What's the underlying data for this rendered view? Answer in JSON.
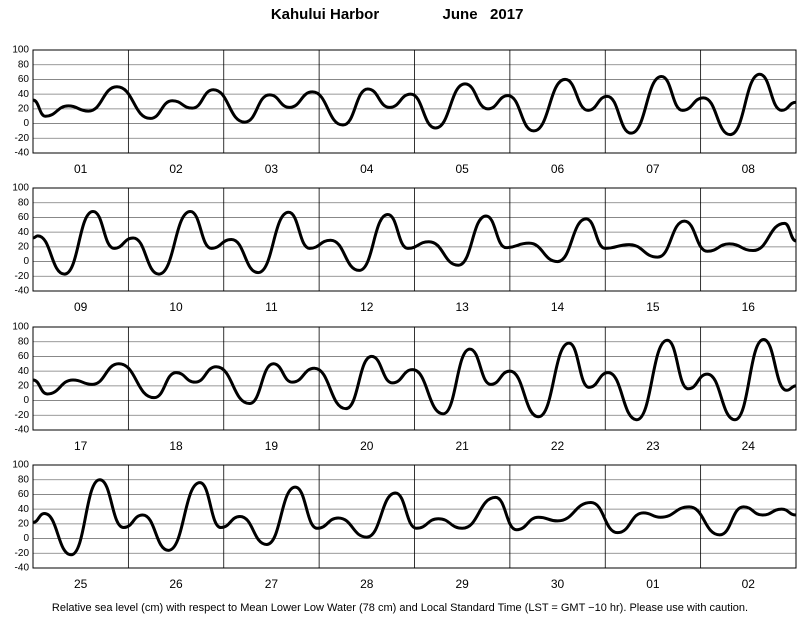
{
  "header": {
    "title": "Kahului Harbor",
    "date": "June   2017"
  },
  "footnote": "Relative sea level (cm) with respect to Mean Lower Low Water (78 cm) and Local Standard Time (LST = GMT −10 hr). Please use with caution.",
  "chart_data": [
    {
      "type": "line",
      "categories": [
        "01",
        "02",
        "03",
        "04",
        "05",
        "06",
        "07",
        "08"
      ],
      "xlim": [
        0,
        8
      ],
      "ylim": [
        -40,
        100
      ],
      "yticks": [
        -40,
        -20,
        0,
        20,
        40,
        60,
        80,
        100
      ],
      "grid": true,
      "color": "#000000",
      "x": [
        0,
        0.13,
        0.37,
        0.58,
        0.88,
        1.23,
        1.46,
        1.67,
        1.89,
        2.22,
        2.48,
        2.69,
        2.93,
        3.25,
        3.51,
        3.74,
        3.96,
        4.22,
        4.53,
        4.77,
        4.98,
        5.25,
        5.58,
        5.82,
        6.02,
        6.27,
        6.59,
        6.81,
        7.03,
        7.31,
        7.62,
        7.85,
        8
      ],
      "values": [
        32,
        10,
        24,
        17,
        50,
        7,
        31,
        21,
        46,
        2,
        39,
        22,
        43,
        -2,
        47,
        22,
        40,
        -6,
        54,
        20,
        38,
        -10,
        60,
        18,
        37,
        -13,
        64,
        18,
        35,
        -15,
        67,
        18,
        29
      ]
    },
    {
      "type": "line",
      "categories": [
        "09",
        "10",
        "11",
        "12",
        "13",
        "14",
        "15",
        "16"
      ],
      "xlim": [
        0,
        8
      ],
      "ylim": [
        -40,
        100
      ],
      "yticks": [
        -40,
        -20,
        0,
        20,
        40,
        60,
        80,
        100
      ],
      "grid": true,
      "color": "#000000",
      "x": [
        0,
        0.05,
        0.33,
        0.63,
        0.85,
        1.05,
        1.32,
        1.65,
        1.87,
        2.08,
        2.36,
        2.68,
        2.9,
        3.12,
        3.42,
        3.72,
        3.93,
        4.15,
        4.46,
        4.75,
        4.96,
        5.2,
        5.5,
        5.8,
        6.0,
        6.25,
        6.55,
        6.83,
        7.07,
        7.3,
        7.55,
        7.88,
        8
      ],
      "values": [
        32,
        35,
        -17,
        68,
        18,
        32,
        -17,
        68,
        18,
        30,
        -15,
        67,
        18,
        29,
        -12,
        64,
        18,
        27,
        -5,
        62,
        19,
        25,
        0,
        58,
        18,
        23,
        6,
        55,
        14,
        24,
        15,
        52,
        28
      ]
    },
    {
      "type": "line",
      "categories": [
        "17",
        "18",
        "19",
        "20",
        "21",
        "22",
        "23",
        "24"
      ],
      "xlim": [
        0,
        8
      ],
      "ylim": [
        -40,
        100
      ],
      "yticks": [
        -40,
        -20,
        0,
        20,
        40,
        60,
        80,
        100
      ],
      "grid": true,
      "color": "#000000",
      "x": [
        0,
        0.15,
        0.42,
        0.62,
        0.9,
        1.27,
        1.5,
        1.7,
        1.92,
        2.27,
        2.52,
        2.72,
        2.95,
        3.28,
        3.55,
        3.77,
        3.98,
        4.3,
        4.58,
        4.8,
        5.0,
        5.3,
        5.62,
        5.83,
        6.03,
        6.33,
        6.65,
        6.87,
        7.07,
        7.36,
        7.66,
        7.9,
        8
      ],
      "values": [
        28,
        9,
        28,
        22,
        50,
        4,
        38,
        25,
        46,
        -4,
        50,
        25,
        44,
        -11,
        60,
        24,
        42,
        -18,
        70,
        22,
        40,
        -22,
        78,
        18,
        38,
        -26,
        82,
        16,
        36,
        -26,
        83,
        14,
        20
      ]
    },
    {
      "type": "line",
      "categories": [
        "25",
        "26",
        "27",
        "28",
        "29",
        "30",
        "01",
        "02"
      ],
      "xlim": [
        0,
        8
      ],
      "ylim": [
        -40,
        100
      ],
      "yticks": [
        -40,
        -20,
        0,
        20,
        40,
        60,
        80,
        100
      ],
      "grid": true,
      "color": "#000000",
      "x": [
        0,
        0.12,
        0.4,
        0.7,
        0.95,
        1.15,
        1.42,
        1.75,
        1.97,
        2.17,
        2.45,
        2.75,
        2.98,
        3.2,
        3.5,
        3.8,
        4.02,
        4.25,
        4.5,
        4.85,
        5.07,
        5.3,
        5.5,
        5.85,
        6.13,
        6.4,
        6.58,
        6.88,
        7.2,
        7.45,
        7.65,
        7.85,
        8
      ],
      "values": [
        22,
        34,
        -22,
        80,
        15,
        32,
        -16,
        76,
        15,
        30,
        -8,
        70,
        14,
        28,
        2,
        62,
        14,
        27,
        14,
        56,
        12,
        29,
        24,
        49,
        8,
        35,
        29,
        43,
        5,
        43,
        32,
        40,
        32
      ]
    }
  ]
}
